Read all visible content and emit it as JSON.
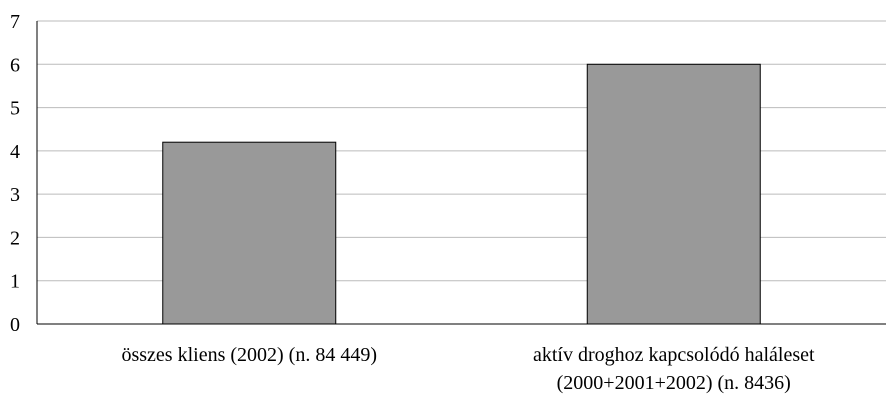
{
  "chart_data": {
    "type": "bar",
    "categories": [
      [
        "összes kliens (2002) (n. 84 449)"
      ],
      [
        "aktív droghoz kapcsolódó haláleset",
        "(2000+2001+2002) (n. 8436)"
      ]
    ],
    "values": [
      4.2,
      6
    ],
    "yticks": [
      "0",
      "1",
      "2",
      "3",
      "4",
      "5",
      "6",
      "7"
    ],
    "ylim": [
      0,
      7
    ],
    "grid": true,
    "bar_color": "#999999",
    "grid_color": "#bbbbbb"
  }
}
